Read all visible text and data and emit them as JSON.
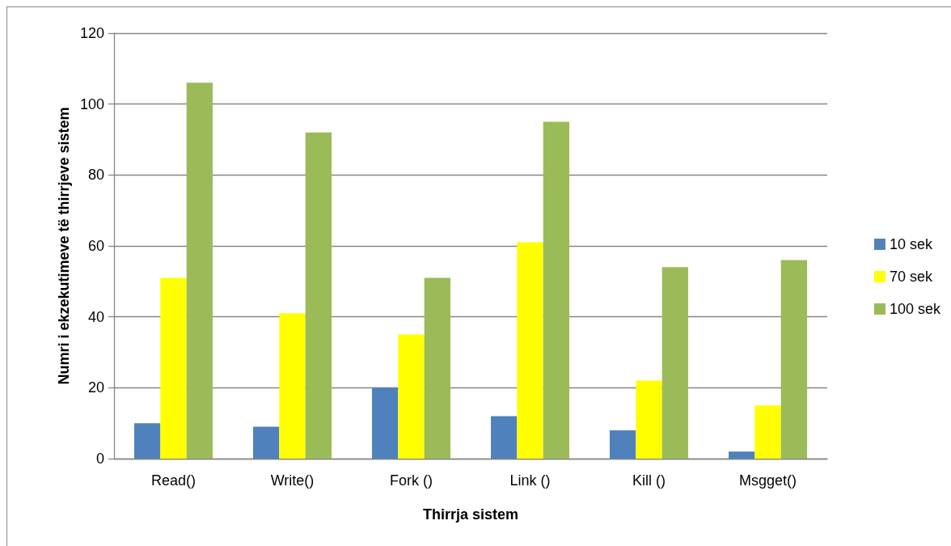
{
  "chart_data": {
    "type": "bar",
    "xlabel": "Thirrja sistem",
    "ylabel": "Numri i ekzekutimeve të thirrjeve sistem",
    "categories": [
      "Read()",
      "Write()",
      "Fork ()",
      "Link ()",
      "Kill ()",
      "Msgget()"
    ],
    "series": [
      {
        "name": "10 sek",
        "color": "#4f81bd",
        "values": [
          10,
          9,
          20,
          12,
          8,
          2
        ]
      },
      {
        "name": "70 sek",
        "color": "#ffff00",
        "values": [
          51,
          41,
          35,
          61,
          22,
          15
        ]
      },
      {
        "name": "100 sek",
        "color": "#9bbb59",
        "values": [
          106,
          92,
          51,
          95,
          54,
          56
        ]
      }
    ],
    "ylim": [
      0,
      120
    ],
    "yticks": [
      0,
      20,
      40,
      60,
      80,
      100,
      120
    ],
    "grid": "y",
    "legend": "right"
  }
}
